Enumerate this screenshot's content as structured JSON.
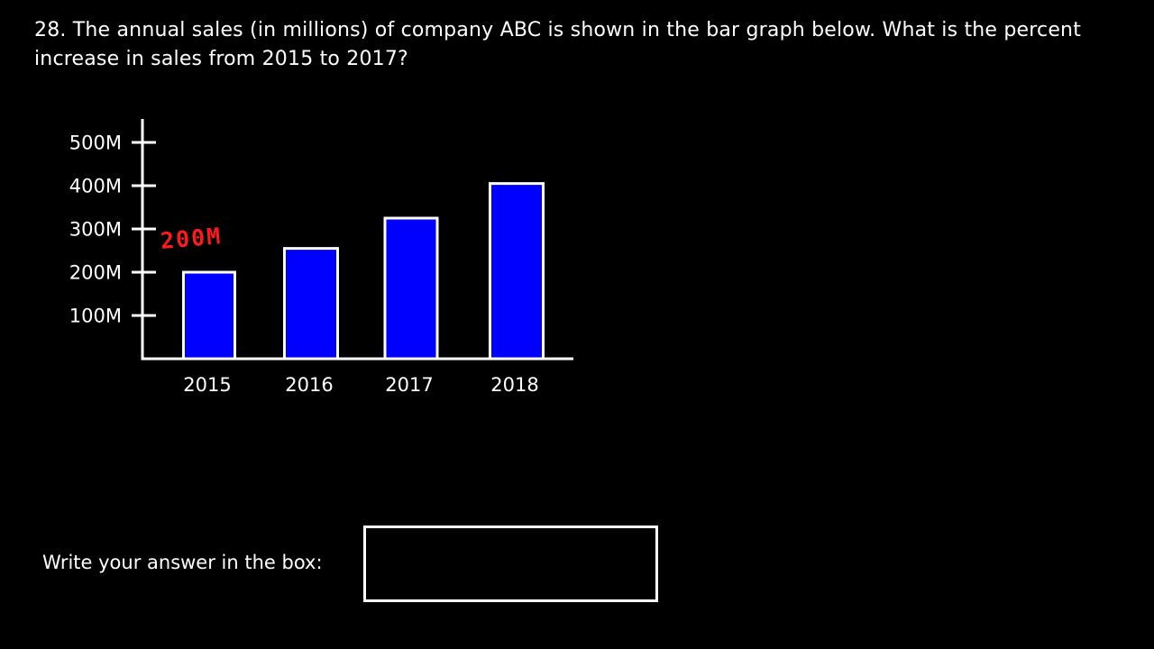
{
  "question": {
    "number": "28.",
    "text": "28.  The annual sales (in millions) of company ABC is shown in the bar graph below.  What is the percent increase in sales from 2015 to 2017?"
  },
  "chart_data": {
    "type": "bar",
    "categories": [
      "2015",
      "2016",
      "2017",
      "2018"
    ],
    "values": [
      200,
      255,
      325,
      405
    ],
    "y_unit": "M",
    "y_ticks": [
      100,
      200,
      300,
      400,
      500
    ],
    "y_tick_labels": [
      "100M",
      "200M",
      "300M",
      "400M",
      "500M"
    ],
    "ylim": [
      0,
      500
    ],
    "title": "",
    "xlabel": "",
    "ylabel": "",
    "grid": false,
    "annotation": "200M",
    "colors": {
      "bar_fill": "#0000ff",
      "bar_stroke": "#ffffff",
      "axis": "#ffffff",
      "annotation": "#ff1a1a"
    }
  },
  "answer": {
    "label": "Write your answer in the box:",
    "value": ""
  }
}
